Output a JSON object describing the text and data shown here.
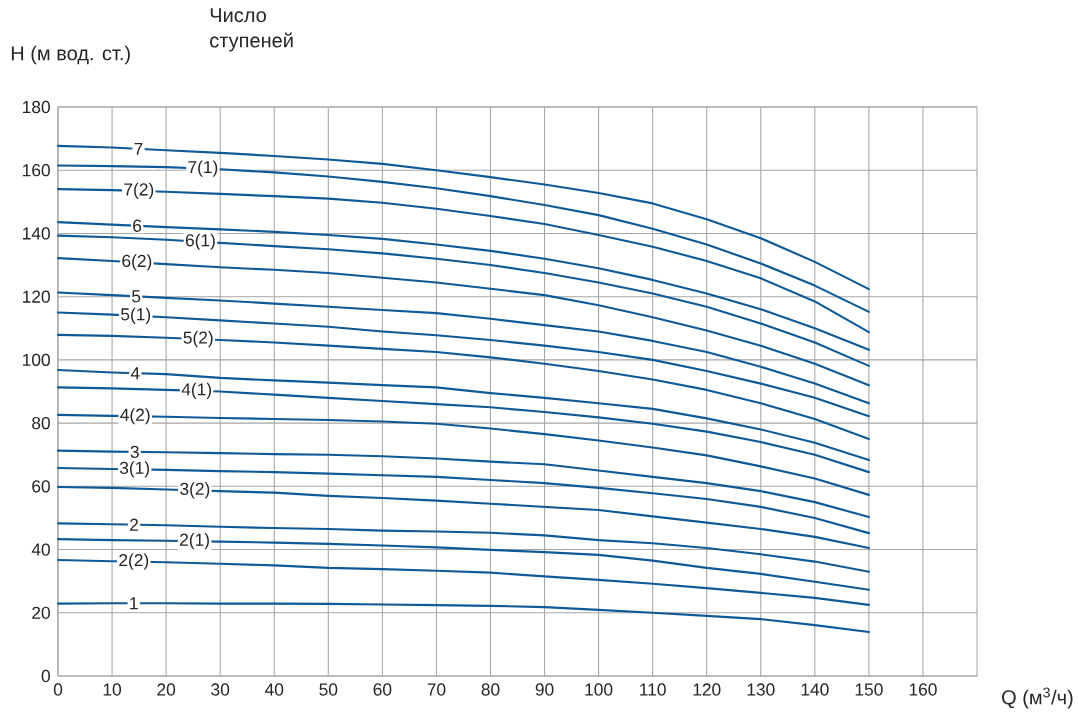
{
  "chart_data": {
    "type": "line",
    "xlabel": "Q (м$^{3}$/ч)",
    "ylabel": "H (м вод. ст.)",
    "legend_title": "Число ступеней",
    "x": [
      0,
      10,
      20,
      30,
      40,
      50,
      60,
      70,
      80,
      90,
      100,
      110,
      120,
      130,
      140,
      150
    ],
    "series": [
      {
        "name": "7",
        "color": "#0f5a96",
        "values": [
          167.7,
          167.2,
          166.3,
          165.5,
          164.5,
          163.4,
          162,
          160,
          157.8,
          155.5,
          152.8,
          149.5,
          144.5,
          138.5,
          131,
          122.4
        ]
      },
      {
        "name": "7(1)",
        "color": "#0f5a96",
        "values": [
          161.5,
          161.3,
          161,
          160.3,
          159.3,
          158,
          156.3,
          154.3,
          151.8,
          149,
          145.8,
          141.5,
          136.5,
          130.5,
          123.5,
          115.2
        ]
      },
      {
        "name": "7(2)",
        "color": "#0f5a96",
        "values": [
          154,
          153.7,
          153.2,
          152.5,
          151.8,
          151,
          149.7,
          147.8,
          145.5,
          143,
          139.5,
          135.8,
          131.3,
          125.8,
          118.5,
          108.8
        ]
      },
      {
        "name": "6",
        "color": "#0f5a96",
        "values": [
          143.6,
          142.8,
          142,
          141.3,
          140.5,
          139.5,
          138.3,
          136.5,
          134.5,
          132,
          129,
          125.3,
          121,
          116,
          110,
          103.2
        ]
      },
      {
        "name": "6(1)",
        "color": "#0f5a96",
        "values": [
          139.3,
          138.8,
          138,
          137,
          136,
          135,
          133.7,
          132,
          130,
          127.5,
          124.5,
          121,
          116.8,
          111.5,
          105.5,
          98.1
        ]
      },
      {
        "name": "6(2)",
        "color": "#0f5a96",
        "values": [
          132.2,
          131.3,
          130.3,
          129.3,
          128.5,
          127.5,
          126,
          124.5,
          122.5,
          120.5,
          117.3,
          113.5,
          109.3,
          104.5,
          98.8,
          92
        ]
      },
      {
        "name": "5",
        "color": "#0f5a96",
        "values": [
          121.3,
          120.5,
          119.6,
          118.8,
          117.8,
          116.8,
          115.8,
          114.8,
          113,
          111,
          109,
          106,
          102.5,
          97.8,
          92.5,
          86.3
        ]
      },
      {
        "name": "5(1)",
        "color": "#0f5a96",
        "values": [
          115,
          114.3,
          113.5,
          112.5,
          111.5,
          110.5,
          109,
          107.8,
          106.3,
          104.5,
          102.5,
          100,
          96.5,
          92.5,
          88,
          82.2
        ]
      },
      {
        "name": "5(2)",
        "color": "#0f5a96",
        "values": [
          107.9,
          107.6,
          107,
          106.3,
          105.5,
          104.5,
          103.5,
          102.5,
          100.8,
          98.8,
          96.5,
          93.8,
          90.5,
          86.3,
          81.3,
          75
        ]
      },
      {
        "name": "4",
        "color": "#0f5a96",
        "values": [
          96.8,
          96,
          95.5,
          94.3,
          93.5,
          92.8,
          92,
          91.3,
          89.5,
          88,
          86.3,
          84.5,
          81.5,
          78,
          73.8,
          68.3
        ]
      },
      {
        "name": "4(1)",
        "color": "#0f5a96",
        "values": [
          91.3,
          91,
          90.5,
          90,
          89,
          88,
          87,
          86,
          85,
          83.5,
          81.8,
          79.8,
          77.3,
          74,
          70,
          64.5
        ]
      },
      {
        "name": "4(2)",
        "color": "#0f5a96",
        "values": [
          82.6,
          82.3,
          82,
          81.6,
          81.3,
          81,
          80.5,
          79.8,
          78.3,
          76.5,
          74.5,
          72.3,
          69.8,
          66.3,
          62.5,
          57.3
        ]
      },
      {
        "name": "3",
        "color": "#0f5a96",
        "values": [
          71.3,
          71,
          70.8,
          70.5,
          70.2,
          70,
          69.5,
          68.8,
          67.8,
          67,
          65,
          63,
          61,
          58.5,
          55,
          50.3
        ]
      },
      {
        "name": "3(1)",
        "color": "#0f5a96",
        "values": [
          65.8,
          65.5,
          65.2,
          64.8,
          64.5,
          64,
          63.5,
          63,
          62,
          61,
          59.5,
          57.8,
          56,
          53.5,
          50,
          45.2
        ]
      },
      {
        "name": "3(2)",
        "color": "#0f5a96",
        "values": [
          59.8,
          59.5,
          59,
          58.5,
          58,
          57,
          56.3,
          55.5,
          54.5,
          53.5,
          52.5,
          50.5,
          48.5,
          46.5,
          44,
          40.5
        ]
      },
      {
        "name": "2",
        "color": "#0f5a96",
        "values": [
          48.3,
          48,
          47.7,
          47.2,
          46.8,
          46.5,
          46,
          45.7,
          45.3,
          44.5,
          43,
          42,
          40.5,
          38.5,
          36.2,
          33
        ]
      },
      {
        "name": "2(1)",
        "color": "#0f5a96",
        "values": [
          43.3,
          43,
          42.8,
          42.5,
          42.2,
          41.8,
          41.3,
          40.7,
          39.9,
          39.2,
          38.3,
          36.5,
          34.2,
          32.3,
          29.8,
          27.3
        ]
      },
      {
        "name": "2(2)",
        "color": "#0f5a96",
        "values": [
          36.7,
          36.3,
          36,
          35.5,
          35,
          34.2,
          33.8,
          33.3,
          32.7,
          31.5,
          30.4,
          29.2,
          27.8,
          26.3,
          24.7,
          22.5
        ]
      },
      {
        "name": "1",
        "color": "#0f5a96",
        "values": [
          22.9,
          23,
          23,
          22.9,
          22.9,
          22.8,
          22.6,
          22.4,
          22.2,
          21.8,
          20.9,
          20,
          19,
          18,
          16.1,
          13.9
        ]
      }
    ],
    "xlim": [
      0,
      170
    ],
    "ylim": [
      0,
      180
    ],
    "xticks": [
      0,
      10,
      20,
      30,
      40,
      50,
      60,
      70,
      80,
      90,
      100,
      110,
      120,
      130,
      140,
      150,
      160
    ],
    "yticks": [
      0,
      20,
      40,
      60,
      80,
      100,
      120,
      140,
      160,
      180
    ],
    "grid": true
  }
}
